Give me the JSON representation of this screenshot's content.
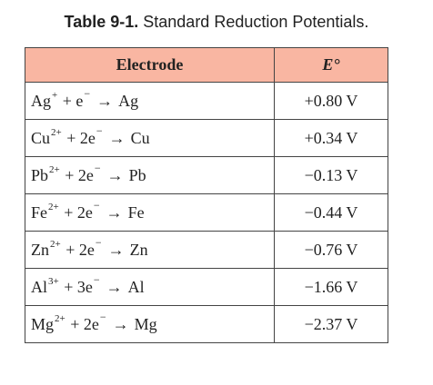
{
  "caption": {
    "label": "Table 9-1.",
    "text": "Standard Reduction Potentials."
  },
  "header": {
    "electrode": "Electrode",
    "potential": "E°"
  },
  "rows": [
    {
      "reactant": "Ag",
      "charge": "+",
      "electrons": "+ e",
      "electron_charge": "−",
      "arrow": "→",
      "product": "Ag",
      "potential": "+0.80 V"
    },
    {
      "reactant": "Cu",
      "charge": "2+",
      "electrons": "+ 2e",
      "electron_charge": "−",
      "arrow": "→",
      "product": "Cu",
      "potential": "+0.34 V"
    },
    {
      "reactant": "Pb",
      "charge": "2+",
      "electrons": "+ 2e",
      "electron_charge": "−",
      "arrow": "→",
      "product": "Pb",
      "potential": "−0.13 V"
    },
    {
      "reactant": "Fe",
      "charge": "2+",
      "electrons": "+ 2e",
      "electron_charge": "−",
      "arrow": "→",
      "product": "Fe",
      "potential": "−0.44 V"
    },
    {
      "reactant": "Zn",
      "charge": "2+",
      "electrons": "+ 2e",
      "electron_charge": "−",
      "arrow": "→",
      "product": "Zn",
      "potential": "−0.76 V"
    },
    {
      "reactant": "Al",
      "charge": "3+",
      "electrons": "+ 3e",
      "electron_charge": "−",
      "arrow": "→",
      "product": "Al",
      "potential": "−1.66 V"
    },
    {
      "reactant": "Mg",
      "charge": "2+",
      "electrons": "+ 2e",
      "electron_charge": "−",
      "arrow": "→",
      "product": "Mg",
      "potential": "−2.37 V"
    }
  ],
  "colors": {
    "header_background": "#f9b6a2",
    "border": "#444444",
    "text": "#222222"
  }
}
